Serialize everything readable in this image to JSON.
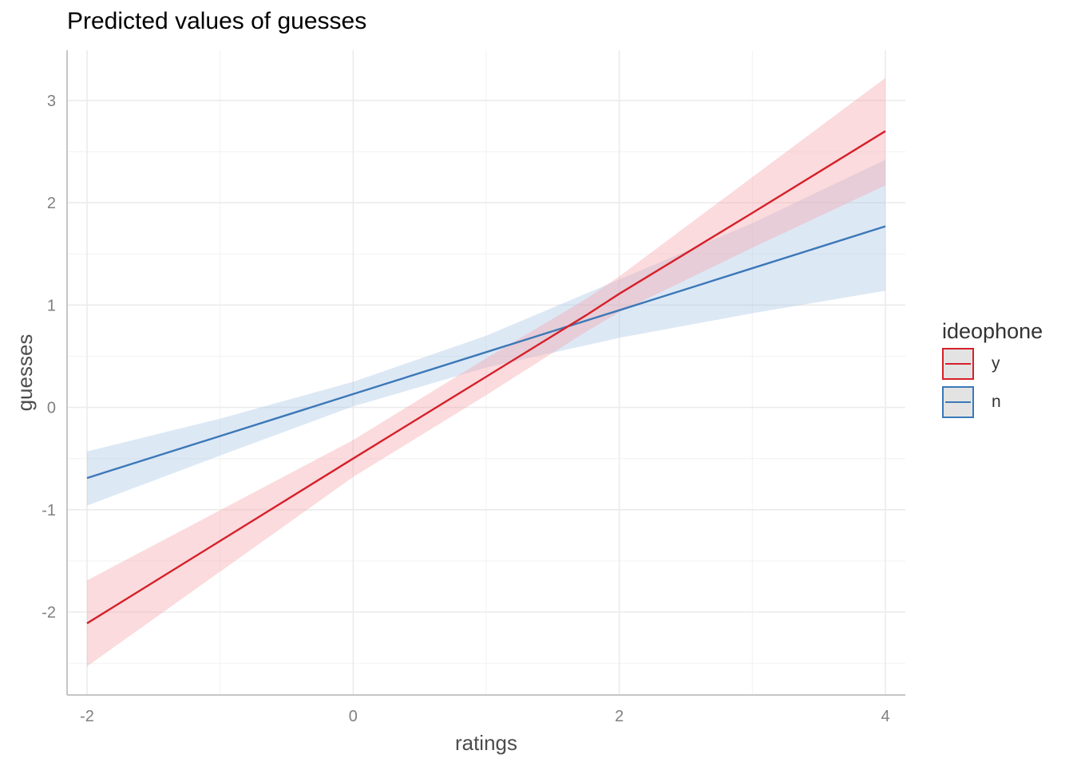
{
  "title": "Predicted values of guesses",
  "colors": {
    "y": "#d6202a",
    "n": "#3b78b8",
    "y_band": "#f4a6ab",
    "n_band": "#a9c6e6"
  },
  "legend": {
    "title": "ideophone",
    "items": [
      {
        "label": "y",
        "color": "#d6202a"
      },
      {
        "label": "n",
        "color": "#3b78b8"
      }
    ]
  },
  "chart_data": {
    "type": "line",
    "xlabel": "ratings",
    "ylabel": "guesses",
    "xlim": [
      -2.15,
      4.15
    ],
    "ylim": [
      -2.81,
      3.49
    ],
    "xticks": [
      -2,
      0,
      2,
      4
    ],
    "yticks": [
      -2,
      -1,
      0,
      1,
      2,
      3
    ],
    "grid": true,
    "legend_position": "right",
    "series": [
      {
        "name": "y",
        "color": "#d6202a",
        "x": [
          -2,
          0,
          1,
          1.75,
          2,
          3,
          4
        ],
        "y": [
          -2.11,
          -0.5,
          0.3,
          0.9,
          1.11,
          1.9,
          2.7
        ],
        "ymin": [
          -2.53,
          -0.68,
          0.12,
          0.74,
          0.93,
          1.56,
          2.17
        ],
        "ymax": [
          -1.69,
          -0.32,
          0.48,
          1.06,
          1.28,
          2.25,
          3.22
        ]
      },
      {
        "name": "n",
        "color": "#3b78b8",
        "x": [
          -2,
          -1,
          0,
          1,
          2,
          3,
          4
        ],
        "y": [
          -0.69,
          -0.28,
          0.13,
          0.54,
          0.95,
          1.36,
          1.77
        ],
        "ymin": [
          -0.96,
          -0.47,
          0.01,
          0.39,
          0.68,
          0.92,
          1.14
        ],
        "ymax": [
          -0.43,
          -0.11,
          0.25,
          0.7,
          1.25,
          1.8,
          2.42
        ]
      }
    ]
  }
}
